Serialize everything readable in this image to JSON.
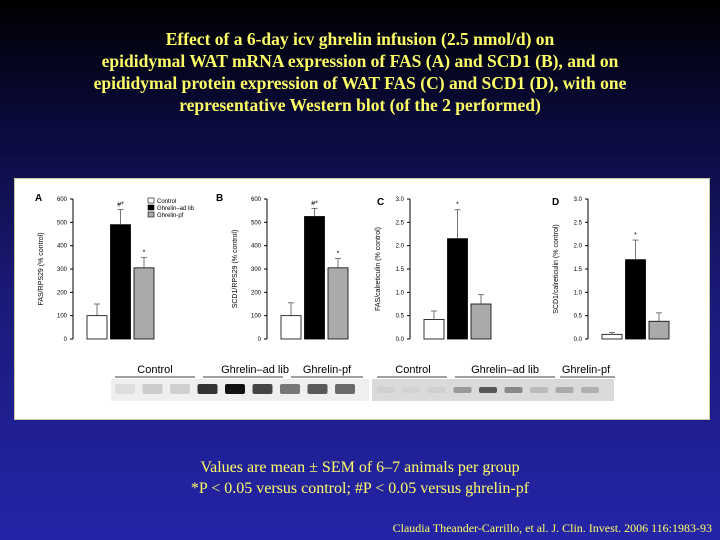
{
  "slide": {
    "title_lines": [
      "Effect of a 6-day icv ghrelin infusion (2.5 nmol/d) on",
      "epididymal WAT mRNA expression of FAS (A) and SCD1 (B), and on",
      "epididymal protein expression of WAT FAS (C) and SCD1 (D), with one",
      "representative Western blot (of the 2 performed)"
    ],
    "notes": [
      "Values are mean ± SEM of 6–7 animals per group",
      "*P < 0.05 versus control; #P < 0.05 versus ghrelin-pf"
    ],
    "citation": "Claudia Theander-Carrillo, et al. J. Clin. Invest. 2006 116:1983-93",
    "colors": {
      "text": "#ffff66",
      "control": "#ffffff",
      "ghrelin_ad_lib": "#000000",
      "ghrelin_pf": "#aaaaaa"
    }
  },
  "legend": [
    "Control",
    "Ghrelin–ad lib",
    "Ghrelin-pf"
  ],
  "blot_labels": {
    "left": [
      "Control",
      "Ghrelin–ad lib",
      "Ghrelin-pf"
    ],
    "right": [
      "Control",
      "Ghrelin–ad lib",
      "Ghrelin-pf"
    ]
  },
  "chart_data": [
    {
      "panel": "A",
      "type": "bar",
      "categories": [
        "Control",
        "Ghrelin–ad lib",
        "Ghrelin-pf"
      ],
      "values": [
        100,
        490,
        305
      ],
      "errors": [
        50,
        65,
        45
      ],
      "sig": [
        "",
        "#*",
        "*"
      ],
      "ylabel": "FAS/RPS29 (% control)",
      "ylim": [
        0,
        600
      ],
      "yticks": [
        "0",
        "100",
        "200",
        "300",
        "400",
        "500",
        "600"
      ]
    },
    {
      "panel": "B",
      "type": "bar",
      "categories": [
        "Control",
        "Ghrelin–ad lib",
        "Ghrelin-pf"
      ],
      "values": [
        100,
        525,
        305
      ],
      "errors": [
        55,
        35,
        40
      ],
      "sig": [
        "",
        "#*",
        "*"
      ],
      "ylabel": "SCD1/RPS29 (% control)",
      "ylim": [
        0,
        600
      ],
      "yticks": [
        "0",
        "100",
        "200",
        "300",
        "400",
        "500",
        "600"
      ]
    },
    {
      "panel": "C",
      "type": "bar",
      "categories": [
        "Control",
        "Ghrelin–ad lib",
        "Ghrelin-pf"
      ],
      "values": [
        0.42,
        2.15,
        0.75
      ],
      "errors": [
        0.18,
        0.62,
        0.2
      ],
      "sig": [
        "",
        "*",
        ""
      ],
      "ylabel": "FAS/calreticulin (% control)",
      "ylim": [
        0,
        3.0
      ],
      "yticks": [
        "0.0",
        "0.5",
        "1.0",
        "1.5",
        "2.0",
        "2.5",
        "3.0"
      ]
    },
    {
      "panel": "D",
      "type": "bar",
      "categories": [
        "Control",
        "Ghrelin–ad lib",
        "Ghrelin-pf"
      ],
      "values": [
        0.1,
        1.7,
        0.38
      ],
      "errors": [
        0.04,
        0.42,
        0.18
      ],
      "sig": [
        "",
        "*",
        ""
      ],
      "ylabel": "SCD1/calreticulin (% control)",
      "ylim": [
        0,
        3.0
      ],
      "yticks": [
        "0.0",
        "0.5",
        "1.0",
        "1.5",
        "2.0",
        "2.5",
        "3.0"
      ]
    }
  ]
}
